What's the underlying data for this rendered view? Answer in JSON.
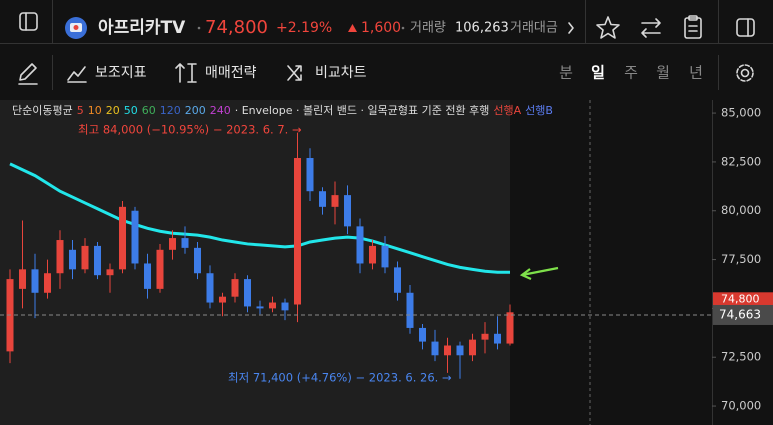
{
  "header": {
    "name": "아프리카TV",
    "price": "74,800",
    "change_pct": "+2.19%",
    "change": "1,600",
    "volume_label": "거래량",
    "volume": "106,263",
    "amount_label": "거래대금"
  },
  "toolbar": {
    "tools": [
      "보조지표",
      "매매전략",
      "비교차트"
    ],
    "periods": [
      "분",
      "일",
      "주",
      "월",
      "년"
    ]
  },
  "legend": {
    "ma_title": "단순이동평균",
    "periods": [
      {
        "label": 5,
        "color": "#e8453c"
      },
      {
        "label": 10,
        "color": "#f08a24"
      },
      {
        "label": 20,
        "color": "#e8c020"
      },
      {
        "label": 50,
        "color": "#22dde6"
      },
      {
        "label": 60,
        "color": "#3fae5a"
      },
      {
        "label": 120,
        "color": "#3a64c8"
      },
      {
        "label": 200,
        "color": "#5aa8e8"
      },
      {
        "label": 240,
        "color": "#c040d0"
      }
    ],
    "rest": [
      {
        "text": "· Envelope · 볼린저 밴드 · 일목균형표 기준 전환 후행",
        "color": "#dddddd"
      },
      {
        "text": "선행A",
        "color": "#e8453c"
      },
      {
        "text": "선행B",
        "color": "#5b7cf0"
      }
    ]
  },
  "chart_data": {
    "type": "candlestick",
    "high_note": "최고 84,000 (−10.95%) − 2023. 6. 7. →",
    "low_note": "최저 71,400 (+4.76%) − 2023. 6. 26. →",
    "categories": [
      null,
      null,
      null,
      null,
      null,
      null,
      null,
      null,
      null,
      null,
      null,
      null,
      null,
      null,
      null,
      null,
      null,
      null,
      null,
      null,
      null,
      null,
      null,
      null,
      null,
      null,
      null,
      null,
      null,
      null,
      null,
      null,
      null,
      null,
      null,
      null,
      null,
      null,
      null,
      null,
      null
    ],
    "open": [
      72800,
      76000,
      77000,
      75800,
      76800,
      78000,
      77000,
      78200,
      76700,
      77000,
      80000,
      77300,
      76000,
      78000,
      78600,
      78100,
      76800,
      75300,
      75600,
      76500,
      75100,
      75000,
      75300,
      75200,
      82700,
      81000,
      80200,
      80800,
      79200,
      77300,
      78200,
      77100,
      75800,
      74000,
      73300,
      72600,
      73100,
      72600,
      73400,
      73700,
      73200
    ],
    "high": [
      77000,
      79500,
      77800,
      77500,
      79000,
      78500,
      78600,
      78400,
      77300,
      80500,
      80200,
      77800,
      78300,
      79000,
      79200,
      78400,
      77200,
      75800,
      76800,
      76700,
      75400,
      75600,
      75500,
      84000,
      83200,
      81200,
      81500,
      81300,
      79600,
      78500,
      78700,
      77400,
      76200,
      74200,
      73900,
      73500,
      73300,
      73700,
      74300,
      74600,
      75200
    ],
    "low": [
      72200,
      75000,
      74500,
      75500,
      76000,
      76500,
      76800,
      76500,
      75800,
      76800,
      77000,
      75500,
      75800,
      77500,
      77800,
      76500,
      75000,
      74600,
      75300,
      74800,
      74700,
      74800,
      74400,
      74300,
      80500,
      79800,
      79300,
      78800,
      76800,
      77000,
      76800,
      75400,
      73700,
      72900,
      72300,
      71700,
      71400,
      72300,
      72700,
      72900,
      73100
    ],
    "close": [
      76500,
      77000,
      75800,
      76800,
      78500,
      77000,
      78200,
      76700,
      77000,
      80200,
      77300,
      76000,
      78000,
      78600,
      78100,
      76800,
      75300,
      75600,
      76500,
      75100,
      75000,
      75300,
      74900,
      82700,
      81000,
      80200,
      80800,
      79200,
      77300,
      78200,
      77100,
      75800,
      74000,
      73300,
      72600,
      73100,
      72600,
      73400,
      73700,
      73200,
      74800
    ],
    "up_color": "#e8453c",
    "down_color": "#3d7ce8",
    "lines": [
      {
        "color": "#22e6ea",
        "values": [
          82400,
          82100,
          81800,
          81400,
          81000,
          80700,
          80400,
          80100,
          79800,
          79500,
          79300,
          79100,
          78950,
          78850,
          78800,
          78750,
          78650,
          78500,
          78400,
          78300,
          78250,
          78200,
          78150,
          78200,
          78400,
          78500,
          78600,
          78650,
          78600,
          78450,
          78250,
          78050,
          77850,
          77650,
          77450,
          77250,
          77100,
          77000,
          76900,
          76850,
          76850
        ]
      }
    ],
    "ylim": [
      69030,
      85670
    ],
    "yticks": [
      {
        "value": 70000,
        "label": "70,000"
      },
      {
        "value": 72500,
        "label": "72,500"
      },
      {
        "value": 75000,
        "label": "75,000"
      },
      {
        "value": 77500,
        "label": "77,500"
      },
      {
        "value": 80000,
        "label": "80,000"
      },
      {
        "value": 82500,
        "label": "82,500"
      },
      {
        "value": 85000,
        "label": "85,000"
      }
    ],
    "grid": false,
    "current_price": {
      "value": 74800,
      "label": "74,800"
    },
    "marker_price": {
      "value": 74663,
      "label": "74,663"
    }
  }
}
